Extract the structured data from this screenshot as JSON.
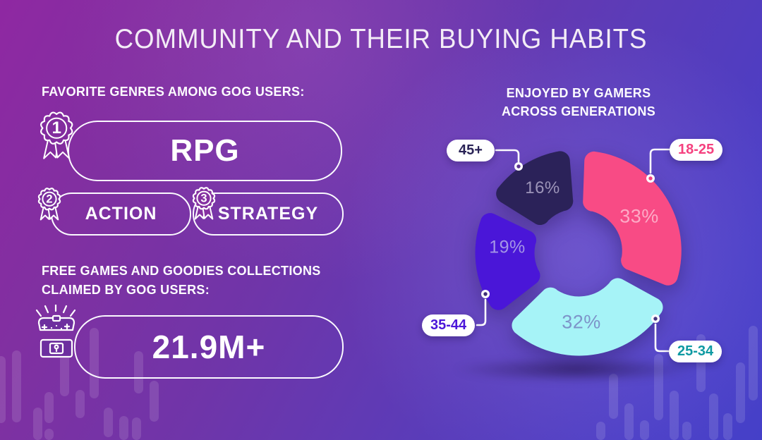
{
  "title": "COMMUNITY AND THEIR BUYING HABITS",
  "colors": {
    "background_top_left": "#8f28a2",
    "background_bottom_right": "#4540c8",
    "outline_white": "#fbfaff"
  },
  "left_panel": {
    "genres_heading": "FAVORITE GENRES AMONG GOG USERS:",
    "genres": [
      {
        "rank": "1",
        "label": "RPG"
      },
      {
        "rank": "2",
        "label": "ACTION"
      },
      {
        "rank": "3",
        "label": "STRATEGY"
      }
    ],
    "claims_heading_line1": "FREE GAMES AND GOODIES COLLECTIONS",
    "claims_heading_line2": "CLAIMED BY GOG USERS:",
    "claims_value": "21.9M+"
  },
  "chart": {
    "heading_line1": "ENJOYED BY GAMERS",
    "heading_line2": "ACROSS GENERATIONS"
  },
  "chart_data": {
    "type": "pie",
    "subtype": "donut",
    "title": "ENJOYED BY GAMERS ACROSS GENERATIONS",
    "categories": [
      "18-25",
      "25-34",
      "35-44",
      "45+"
    ],
    "values": [
      33,
      32,
      19,
      16
    ],
    "unit": "%",
    "value_labels": [
      "33%",
      "32%",
      "19%",
      "16%"
    ],
    "segment_colors": [
      "#f84b85",
      "#a6f3f7",
      "#4a16d8",
      "#2b2259"
    ],
    "value_label_colors": [
      "#fdaac6",
      "#7d94c9",
      "#a495e6",
      "#9c94b8"
    ],
    "callout_text_colors": [
      "#f5417f",
      "#0e9aa2",
      "#4b16d9",
      "#2a2356"
    ],
    "start_angle_deg": 2,
    "gap_deg": 6.5,
    "legend_position": "callout-pills"
  }
}
